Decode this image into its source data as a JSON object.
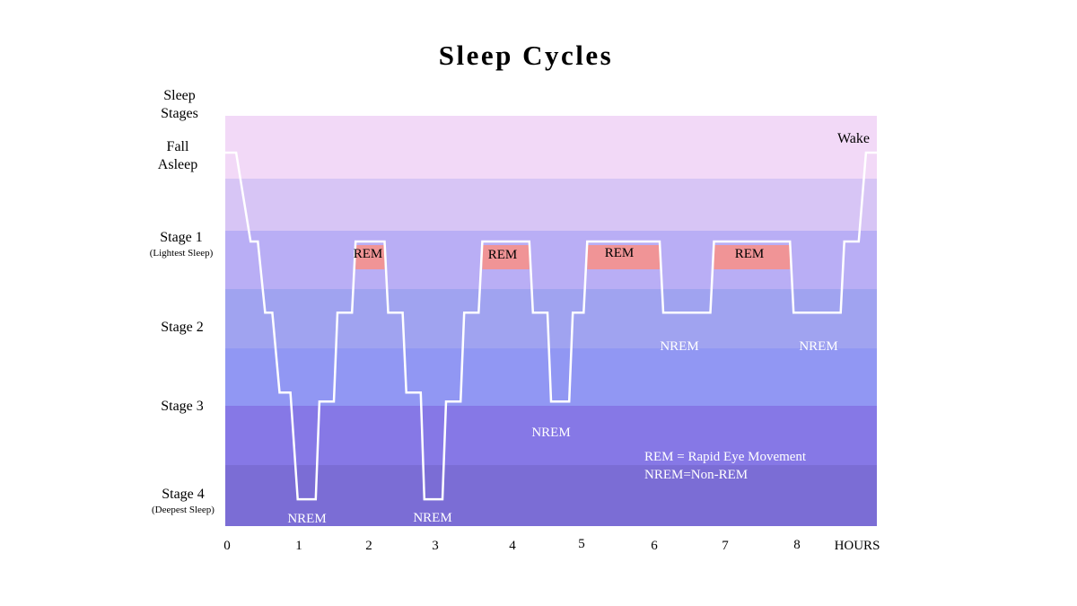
{
  "title": "Sleep Cycles",
  "y_axis_title": [
    "Sleep",
    "Stages"
  ],
  "stage_labels": {
    "fall_asleep": [
      "Fall",
      "Asleep"
    ],
    "stage1": "Stage 1",
    "stage1_note": "(Lightest Sleep)",
    "stage2": "Stage 2",
    "stage3": "Stage 3",
    "stage4": "Stage 4",
    "stage4_note": "(Deepest Sleep)",
    "wake": "Wake"
  },
  "x_axis": {
    "ticks": [
      "0",
      "1",
      "2",
      "3",
      "4",
      "5",
      "6",
      "7",
      "8"
    ],
    "unit": "HOURS"
  },
  "annotations": {
    "rem": "REM",
    "nrem": "NREM"
  },
  "legend": {
    "line1": "REM = Rapid Eye Movement",
    "line2": "NREM=Non-REM"
  },
  "colors": {
    "band_awake": "#f2d9f7",
    "band_stage1_top": "#d7c5f5",
    "band_stage1": "#b9aef5",
    "band_stage2_upper": "#a0a3f0",
    "band_stage2_lower": "#9197f3",
    "band_stage3": "#8678e6",
    "band_stage4": "#7b6dd5",
    "rem_block": "#f09496",
    "hypnogram_line": "#ffffff"
  },
  "chart_data": {
    "type": "line",
    "x_unit": "hours",
    "xlim": [
      0,
      9
    ],
    "y_levels": [
      "Stage 4",
      "Stage 3",
      "Stage 2",
      "Stage 1",
      "Wake"
    ],
    "y_level_values": [
      0,
      1,
      2,
      3,
      4
    ],
    "hypnogram": [
      [
        0.0,
        4
      ],
      [
        0.15,
        4
      ],
      [
        0.35,
        3
      ],
      [
        0.45,
        3
      ],
      [
        0.55,
        2.2
      ],
      [
        0.65,
        2.2
      ],
      [
        0.75,
        1.3
      ],
      [
        0.9,
        1.3
      ],
      [
        1.0,
        0.1
      ],
      [
        1.25,
        0.1
      ],
      [
        1.3,
        1.2
      ],
      [
        1.5,
        1.2
      ],
      [
        1.55,
        2.2
      ],
      [
        1.75,
        2.2
      ],
      [
        1.8,
        3
      ],
      [
        2.2,
        3
      ],
      [
        2.25,
        2.2
      ],
      [
        2.45,
        2.2
      ],
      [
        2.5,
        1.3
      ],
      [
        2.7,
        1.3
      ],
      [
        2.75,
        0.1
      ],
      [
        3.0,
        0.1
      ],
      [
        3.05,
        1.2
      ],
      [
        3.25,
        1.2
      ],
      [
        3.3,
        2.2
      ],
      [
        3.5,
        2.2
      ],
      [
        3.55,
        3
      ],
      [
        4.2,
        3
      ],
      [
        4.25,
        2.2
      ],
      [
        4.45,
        2.2
      ],
      [
        4.5,
        1.2
      ],
      [
        4.75,
        1.2
      ],
      [
        4.8,
        2.2
      ],
      [
        4.95,
        2.2
      ],
      [
        5.0,
        3
      ],
      [
        6.0,
        3
      ],
      [
        6.05,
        2.2
      ],
      [
        6.7,
        2.2
      ],
      [
        6.75,
        3
      ],
      [
        7.8,
        3
      ],
      [
        7.85,
        2.2
      ],
      [
        8.5,
        2.2
      ],
      [
        8.55,
        3
      ],
      [
        8.75,
        3
      ],
      [
        8.85,
        4
      ],
      [
        9.0,
        4
      ]
    ],
    "rem_periods": [
      [
        1.8,
        2.2
      ],
      [
        3.55,
        4.2
      ],
      [
        5.0,
        6.0
      ],
      [
        6.75,
        7.8
      ]
    ],
    "nrem_labels": [
      "NREM",
      "NREM",
      "NREM",
      "NREM",
      "NREM"
    ]
  }
}
